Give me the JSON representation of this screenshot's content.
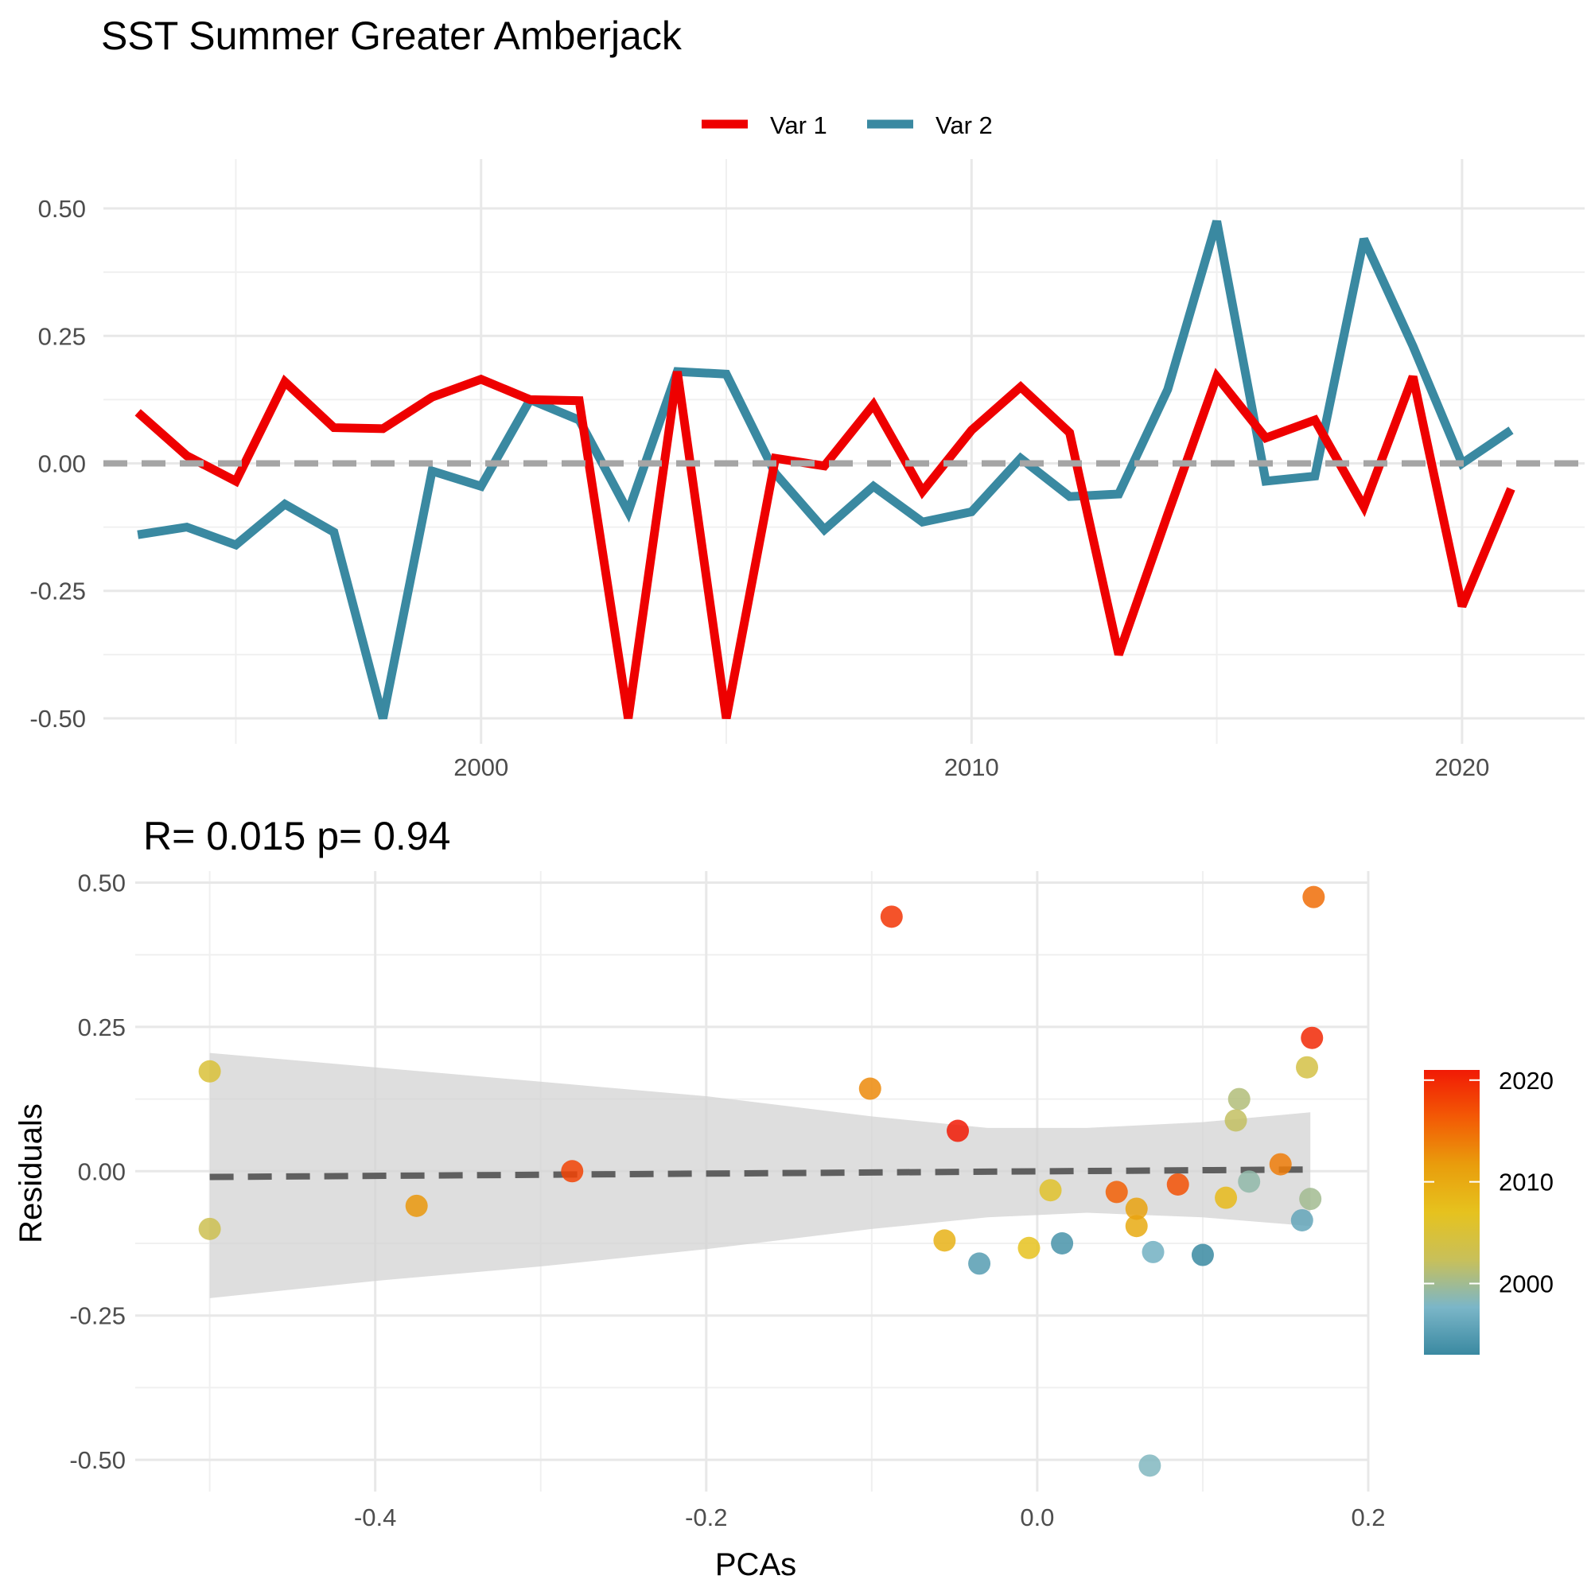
{
  "figure": {
    "title": "SST Summer Greater Amberjack"
  },
  "chart_data": [
    {
      "type": "line",
      "title": "SST Summer Greater Amberjack",
      "xlabel": "",
      "ylabel": "",
      "x": [
        1993,
        1994,
        1995,
        1996,
        1997,
        1998,
        1999,
        2000,
        2001,
        2002,
        2003,
        2004,
        2005,
        2006,
        2007,
        2008,
        2009,
        2010,
        2011,
        2012,
        2013,
        2014,
        2015,
        2016,
        2017,
        2018,
        2019,
        2020,
        2021
      ],
      "series": [
        {
          "name": "Var 1",
          "color": "#EE0000",
          "values": [
            0.1,
            0.015,
            -0.035,
            0.16,
            0.07,
            0.068,
            0.13,
            0.165,
            0.125,
            0.123,
            -0.5,
            0.18,
            -0.5,
            0.01,
            -0.005,
            0.115,
            -0.055,
            0.065,
            0.15,
            0.06,
            -0.375,
            -0.1,
            0.17,
            0.05,
            0.085,
            -0.085,
            0.17,
            -0.28,
            -0.05
          ]
        },
        {
          "name": "Var 2",
          "color": "#3A89A1",
          "values": [
            -0.14,
            -0.125,
            -0.16,
            -0.08,
            -0.135,
            -0.5,
            -0.015,
            -0.045,
            0.125,
            0.085,
            -0.095,
            0.18,
            0.175,
            -0.02,
            -0.13,
            -0.045,
            -0.115,
            -0.095,
            0.01,
            -0.065,
            -0.06,
            0.145,
            0.475,
            -0.035,
            -0.025,
            0.44,
            0.23,
            0.0,
            0.065
          ]
        }
      ],
      "reference_line": 0,
      "xticks": [
        "2000",
        "2010",
        "2020"
      ],
      "yticks": [
        "0.50",
        "0.25",
        "0.00",
        "-0.25",
        "-0.50"
      ],
      "xlim": [
        1992.3,
        2022.5
      ],
      "ylim": [
        -0.55,
        0.55
      ],
      "legend": {
        "position": "top",
        "labels": [
          "Var 1",
          "Var 2"
        ]
      },
      "grid": true
    },
    {
      "type": "scatter",
      "title": "R= 0.015  p= 0.94",
      "xlabel": "PCAs",
      "ylabel": "Residuals",
      "xlim": [
        -0.545,
        0.2
      ],
      "ylim": [
        -0.555,
        0.52
      ],
      "xticks": [
        "-0.4",
        "-0.2",
        "0.0",
        "0.2"
      ],
      "yticks": [
        "0.50",
        "0.25",
        "0.00",
        "-0.25",
        "-0.50"
      ],
      "points": [
        {
          "x": 0.1,
          "y": -0.145,
          "year": 1993
        },
        {
          "x": 0.015,
          "y": -0.125,
          "year": 1994
        },
        {
          "x": -0.035,
          "y": -0.16,
          "year": 1995
        },
        {
          "x": 0.16,
          "y": -0.085,
          "year": 1996
        },
        {
          "x": 0.07,
          "y": -0.14,
          "year": 1997
        },
        {
          "x": 0.068,
          "y": -0.51,
          "year": 1998
        },
        {
          "x": 0.128,
          "y": -0.018,
          "year": 1999
        },
        {
          "x": 0.165,
          "y": -0.048,
          "year": 2000
        },
        {
          "x": 0.122,
          "y": 0.125,
          "year": 2001
        },
        {
          "x": 0.12,
          "y": 0.088,
          "year": 2002
        },
        {
          "x": -0.5,
          "y": -0.1,
          "year": 2003
        },
        {
          "x": 0.163,
          "y": 0.18,
          "year": 2004
        },
        {
          "x": -0.5,
          "y": 0.173,
          "year": 2005
        },
        {
          "x": 0.008,
          "y": -0.033,
          "year": 2006
        },
        {
          "x": -0.005,
          "y": -0.133,
          "year": 2007
        },
        {
          "x": 0.114,
          "y": -0.046,
          "year": 2008
        },
        {
          "x": -0.056,
          "y": -0.12,
          "year": 2009
        },
        {
          "x": 0.06,
          "y": -0.095,
          "year": 2010
        },
        {
          "x": 0.06,
          "y": -0.065,
          "year": 2011
        },
        {
          "x": -0.375,
          "y": -0.06,
          "year": 2012
        },
        {
          "x": -0.101,
          "y": 0.143,
          "year": 2013
        },
        {
          "x": 0.147,
          "y": 0.012,
          "year": 2014
        },
        {
          "x": 0.167,
          "y": 0.475,
          "year": 2015
        },
        {
          "x": 0.048,
          "y": -0.036,
          "year": 2016
        },
        {
          "x": 0.085,
          "y": -0.023,
          "year": 2017
        },
        {
          "x": -0.281,
          "y": 0.0,
          "year": 2018
        },
        {
          "x": -0.088,
          "y": 0.441,
          "year": 2019
        },
        {
          "x": 0.166,
          "y": 0.231,
          "year": 2020
        },
        {
          "x": -0.048,
          "y": 0.07,
          "year": 2021
        }
      ],
      "trend": {
        "type": "linear",
        "from": [
          -0.5,
          -0.01
        ],
        "to": [
          0.165,
          0.003
        ],
        "color": "#5f5f5f",
        "dash": true
      },
      "confidence_band": {
        "x": [
          -0.5,
          -0.4,
          -0.3,
          -0.2,
          -0.1,
          -0.03,
          0.03,
          0.1,
          0.165
        ],
        "upper": [
          0.205,
          0.18,
          0.155,
          0.13,
          0.095,
          0.075,
          0.075,
          0.085,
          0.102
        ],
        "lower": [
          -0.22,
          -0.19,
          -0.165,
          -0.135,
          -0.1,
          -0.08,
          -0.072,
          -0.08,
          -0.095
        ]
      },
      "colorbar": {
        "title": "",
        "ticks": [
          "2020",
          "2010",
          "2000"
        ],
        "range": [
          1993,
          2021
        ],
        "stops": [
          "#3A89A1",
          "#7BB6C8",
          "#C8C05A",
          "#E6C21E",
          "#E99D0C",
          "#F35A05",
          "#F11A05"
        ]
      },
      "grid": true
    }
  ]
}
